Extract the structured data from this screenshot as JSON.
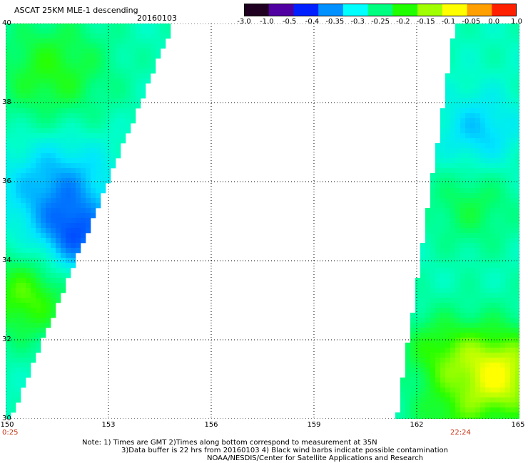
{
  "header": {
    "title": "ASCAT 25KM MLE-1 descending",
    "date": "20160103"
  },
  "colorbar": {
    "ticks": [
      "-3.0",
      "-1.0",
      "-0.5",
      "-0.4",
      "-0.35",
      "-0.3",
      "-0.25",
      "-0.2",
      "-0.15",
      "-0.1",
      "-0.05",
      "0.0",
      "1.0"
    ],
    "colors": [
      "#200020",
      "#5000a0",
      "#0020ff",
      "#0090ff",
      "#00ffff",
      "#00ff80",
      "#20ff00",
      "#a0ff00",
      "#ffff00",
      "#ffa000",
      "#ff2000"
    ]
  },
  "map": {
    "lon_range": [
      150,
      165
    ],
    "lat_range": [
      30,
      40
    ],
    "x_ticks": [
      "150",
      "153",
      "156",
      "159",
      "162",
      "165"
    ],
    "y_ticks": [
      "30",
      "32",
      "34",
      "36",
      "38",
      "40"
    ],
    "pass_times": [
      {
        "label": "0:25"
      },
      {
        "label": "22:24"
      }
    ]
  },
  "footer": {
    "line1": "Note: 1) Times are GMT 2)Times along bottom correspond to measurement at 35N",
    "line2": "3)Data buffer is 22 hrs from 20160103 4) Black wind barbs indicate possible contamination",
    "line3": "NOAA/NESDIS/Center for Satellite Applications and Research"
  }
}
